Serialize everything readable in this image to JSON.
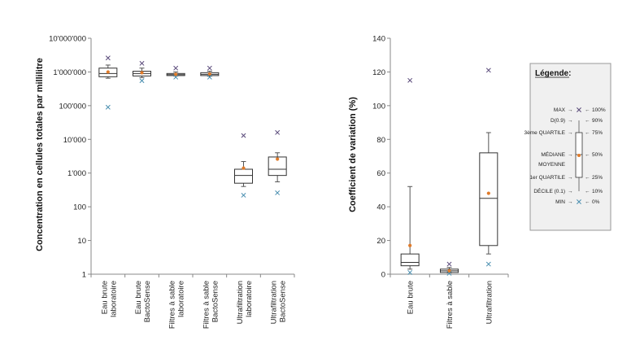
{
  "chart_data": [
    {
      "type": "box",
      "scale": "log",
      "ylabel": "Concentration en cellules totales par millilitre",
      "y_ticks": [
        "1",
        "10",
        "100",
        "1'000",
        "10'000",
        "100'000",
        "1'000'000",
        "10'000'000"
      ],
      "ylim": [
        1,
        10000000
      ],
      "categories": [
        [
          "Eau brute",
          "laboratoire"
        ],
        [
          "Eau brute",
          "BactoSense"
        ],
        [
          "Filtres à sable",
          "laboratoire"
        ],
        [
          "Filtres à sable",
          "BactoSense"
        ],
        [
          "Ultrafiltration",
          "laboratoire"
        ],
        [
          "Ultrafiltration",
          "BactoSense"
        ]
      ],
      "boxes": [
        {
          "min": 90000,
          "d1": 650000,
          "q1": 720000,
          "median": 900000,
          "q3": 1300000,
          "d9": 1600000,
          "max": 2600000,
          "mean": 1000000
        },
        {
          "min": 550000,
          "d1": 680000,
          "q1": 760000,
          "median": 900000,
          "q3": 1050000,
          "d9": 1300000,
          "max": 1800000,
          "mean": 950000
        },
        {
          "min": 700000,
          "d1": 760000,
          "q1": 780000,
          "median": 830000,
          "q3": 900000,
          "d9": 1000000,
          "max": 1300000,
          "mean": 850000
        },
        {
          "min": 700000,
          "d1": 750000,
          "q1": 780000,
          "median": 850000,
          "q3": 950000,
          "d9": 1050000,
          "max": 1300000,
          "mean": 870000
        },
        {
          "min": 220,
          "d1": 400,
          "q1": 500,
          "median": 850,
          "q3": 1300,
          "d9": 2200,
          "max": 13000,
          "mean": 1400
        },
        {
          "min": 260,
          "d1": 550,
          "q1": 850,
          "median": 1300,
          "q3": 3000,
          "d9": 4000,
          "max": 16000,
          "mean": 2600
        }
      ]
    },
    {
      "type": "box",
      "scale": "linear",
      "ylabel": "Coefficient de variation (%)",
      "y_ticks": [
        "0",
        "20",
        "40",
        "60",
        "80",
        "100",
        "120",
        "140"
      ],
      "ylim": [
        0,
        140
      ],
      "categories": [
        [
          "Eau brute"
        ],
        [
          "Filtres à sable"
        ],
        [
          "Ultrafiltration"
        ]
      ],
      "boxes": [
        {
          "min": 1,
          "d1": 3,
          "q1": 5,
          "median": 7,
          "q3": 12,
          "d9": 52,
          "max": 115,
          "mean": 17
        },
        {
          "min": 0.5,
          "d1": 0.8,
          "q1": 1,
          "median": 2,
          "q3": 3,
          "d9": 4,
          "max": 6,
          "mean": 2
        },
        {
          "min": 6,
          "d1": 12,
          "q1": 17,
          "median": 45,
          "q3": 72,
          "d9": 84,
          "max": 121,
          "mean": 48
        }
      ]
    }
  ],
  "legend": {
    "title": "Légende:",
    "rows": [
      {
        "label": "MAX",
        "pct": "100%"
      },
      {
        "label": "D(0.9)",
        "pct": "90%"
      },
      {
        "label": "3ème QUARTILE",
        "pct": "75%"
      },
      {
        "label": "MÉDIANE",
        "pct": "50%"
      },
      {
        "label": "MOYENNE",
        "pct": ""
      },
      {
        "label": "1er QUARTILE",
        "pct": "25%"
      },
      {
        "label": "DÉCILE (0.1)",
        "pct": "10%"
      },
      {
        "label": "MIN",
        "pct": "0%"
      }
    ]
  },
  "colors": {
    "box_stroke": "#333333",
    "whisker": "#555555",
    "cross": "#5a4a7a",
    "min_marker": "#4a8fb0",
    "mean": "#e07b2a",
    "legend_bg": "#f0f0f0",
    "legend_border": "#999999"
  }
}
